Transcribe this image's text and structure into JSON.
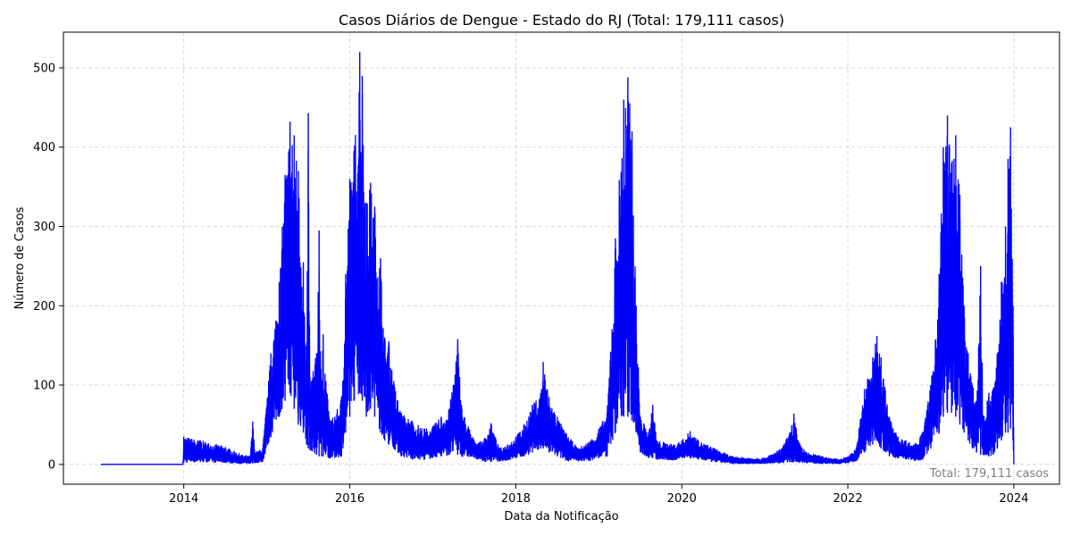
{
  "chart_data": {
    "type": "line",
    "title": "Casos Diários de Dengue - Estado do RJ (Total: 179,111 casos)",
    "xlabel": "Data da Notificação",
    "ylabel": "Número de Casos",
    "xlim": [
      2012.55,
      2024.55
    ],
    "ylim": [
      -25,
      545
    ],
    "x_ticks": [
      2014,
      2016,
      2018,
      2020,
      2022,
      2024
    ],
    "x_tick_labels": [
      "2014",
      "2016",
      "2018",
      "2020",
      "2022",
      "2024"
    ],
    "y_ticks": [
      0,
      100,
      200,
      300,
      400,
      500
    ],
    "y_tick_labels": [
      "0",
      "100",
      "200",
      "300",
      "400",
      "500"
    ],
    "grid": true,
    "series_color": "#0000ff",
    "annotation": "Total: 179,111 casos",
    "series": [
      {
        "x_start": 2013.0,
        "x_end": 2024.0,
        "envelope": [
          [
            2013.0,
            0,
            0
          ],
          [
            2013.99,
            0,
            0
          ],
          [
            2014.0,
            2,
            35
          ],
          [
            2014.2,
            3,
            30
          ],
          [
            2014.5,
            2,
            22
          ],
          [
            2014.7,
            1,
            12
          ],
          [
            2014.8,
            1,
            10
          ],
          [
            2014.83,
            1,
            54
          ],
          [
            2014.86,
            2,
            15
          ],
          [
            2014.95,
            3,
            20
          ],
          [
            2015.05,
            35,
            140
          ],
          [
            2015.15,
            60,
            230
          ],
          [
            2015.22,
            80,
            365
          ],
          [
            2015.28,
            90,
            432
          ],
          [
            2015.33,
            70,
            415
          ],
          [
            2015.38,
            50,
            370
          ],
          [
            2015.44,
            40,
            255
          ],
          [
            2015.48,
            25,
            120
          ],
          [
            2015.5,
            20,
            443
          ],
          [
            2015.52,
            18,
            110
          ],
          [
            2015.6,
            12,
            140
          ],
          [
            2015.63,
            10,
            295
          ],
          [
            2015.66,
            10,
            100
          ],
          [
            2015.68,
            10,
            164
          ],
          [
            2015.75,
            8,
            60
          ],
          [
            2015.82,
            8,
            60
          ],
          [
            2015.9,
            10,
            85
          ],
          [
            2015.95,
            40,
            240
          ],
          [
            2016.0,
            60,
            360
          ],
          [
            2016.05,
            80,
            395
          ],
          [
            2016.12,
            90,
            520
          ],
          [
            2016.15,
            80,
            490
          ],
          [
            2016.2,
            60,
            330
          ],
          [
            2016.25,
            70,
            355
          ],
          [
            2016.3,
            60,
            325
          ],
          [
            2016.37,
            40,
            260
          ],
          [
            2016.42,
            30,
            160
          ],
          [
            2016.47,
            25,
            155
          ],
          [
            2016.53,
            20,
            105
          ],
          [
            2016.62,
            10,
            65
          ],
          [
            2016.75,
            6,
            55
          ],
          [
            2016.9,
            6,
            45
          ],
          [
            2017.0,
            8,
            48
          ],
          [
            2017.1,
            10,
            60
          ],
          [
            2017.2,
            12,
            70
          ],
          [
            2017.3,
            12,
            158
          ],
          [
            2017.35,
            10,
            70
          ],
          [
            2017.5,
            8,
            30
          ],
          [
            2017.6,
            4,
            28
          ],
          [
            2017.7,
            3,
            52
          ],
          [
            2017.8,
            4,
            20
          ],
          [
            2017.9,
            5,
            25
          ],
          [
            2018.0,
            8,
            35
          ],
          [
            2018.1,
            10,
            50
          ],
          [
            2018.2,
            15,
            75
          ],
          [
            2018.3,
            20,
            90
          ],
          [
            2018.33,
            20,
            129
          ],
          [
            2018.4,
            15,
            85
          ],
          [
            2018.5,
            10,
            60
          ],
          [
            2018.6,
            5,
            40
          ],
          [
            2018.75,
            4,
            20
          ],
          [
            2018.9,
            5,
            30
          ],
          [
            2019.0,
            8,
            45
          ],
          [
            2019.1,
            10,
            65
          ],
          [
            2019.2,
            40,
            285
          ],
          [
            2019.3,
            60,
            460
          ],
          [
            2019.35,
            60,
            488
          ],
          [
            2019.4,
            55,
            420
          ],
          [
            2019.45,
            40,
            200
          ],
          [
            2019.5,
            15,
            60
          ],
          [
            2019.6,
            8,
            40
          ],
          [
            2019.65,
            8,
            75
          ],
          [
            2019.7,
            6,
            30
          ],
          [
            2019.9,
            5,
            25
          ],
          [
            2020.0,
            8,
            30
          ],
          [
            2020.1,
            8,
            42
          ],
          [
            2020.2,
            6,
            30
          ],
          [
            2020.4,
            3,
            20
          ],
          [
            2020.6,
            1,
            10
          ],
          [
            2020.8,
            1,
            8
          ],
          [
            2021.0,
            1,
            8
          ],
          [
            2021.2,
            2,
            20
          ],
          [
            2021.3,
            3,
            40
          ],
          [
            2021.35,
            3,
            64
          ],
          [
            2021.4,
            3,
            30
          ],
          [
            2021.5,
            2,
            15
          ],
          [
            2021.7,
            1,
            10
          ],
          [
            2021.9,
            1,
            6
          ],
          [
            2022.0,
            2,
            10
          ],
          [
            2022.1,
            4,
            20
          ],
          [
            2022.2,
            15,
            95
          ],
          [
            2022.3,
            25,
            135
          ],
          [
            2022.35,
            30,
            162
          ],
          [
            2022.4,
            20,
            135
          ],
          [
            2022.5,
            10,
            60
          ],
          [
            2022.6,
            8,
            35
          ],
          [
            2022.7,
            6,
            30
          ],
          [
            2022.8,
            5,
            25
          ],
          [
            2022.9,
            6,
            40
          ],
          [
            2023.0,
            20,
            100
          ],
          [
            2023.1,
            40,
            240
          ],
          [
            2023.15,
            60,
            400
          ],
          [
            2023.2,
            65,
            440
          ],
          [
            2023.25,
            65,
            380
          ],
          [
            2023.3,
            60,
            415
          ],
          [
            2023.35,
            50,
            340
          ],
          [
            2023.4,
            40,
            200
          ],
          [
            2023.45,
            30,
            140
          ],
          [
            2023.5,
            20,
            100
          ],
          [
            2023.55,
            15,
            80
          ],
          [
            2023.6,
            12,
            250
          ],
          [
            2023.63,
            12,
            60
          ],
          [
            2023.7,
            10,
            90
          ],
          [
            2023.75,
            12,
            95
          ],
          [
            2023.8,
            20,
            140
          ],
          [
            2023.85,
            30,
            230
          ],
          [
            2023.9,
            40,
            300
          ],
          [
            2023.93,
            40,
            385
          ],
          [
            2023.96,
            45,
            425
          ],
          [
            2023.99,
            30,
            200
          ],
          [
            2024.0,
            0,
            0
          ]
        ]
      }
    ]
  }
}
